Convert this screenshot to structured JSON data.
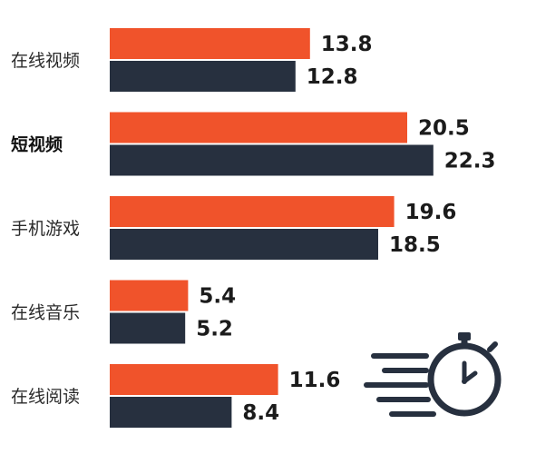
{
  "chart_data": {
    "type": "bar",
    "orientation": "horizontal",
    "categories": [
      "在线视频",
      "短视频",
      "手机游戏",
      "在线音乐",
      "在线阅读"
    ],
    "highlight_category": "短视频",
    "series": [
      {
        "values": [
          13.8,
          20.5,
          19.6,
          5.4,
          11.6
        ],
        "color": "#f0532b"
      },
      {
        "values": [
          12.8,
          22.3,
          18.5,
          5.2,
          8.4
        ],
        "color": "#27303f"
      }
    ],
    "data_labels": true,
    "grid": false,
    "decoration_icon": "stopwatch-speed-icon",
    "decoration_color": "#27303f"
  }
}
